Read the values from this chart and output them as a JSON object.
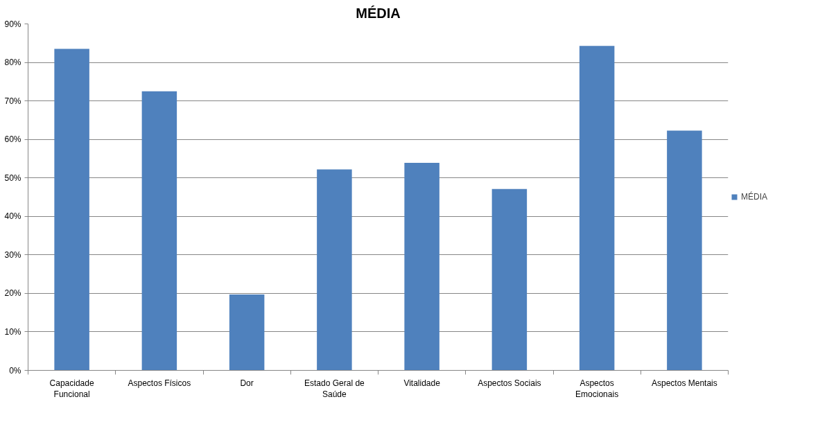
{
  "chart_data": {
    "type": "bar",
    "title": "MÉDIA",
    "categories": [
      "Capacidade Funcional",
      "Aspectos Físicos",
      "Dor",
      "Estado Geral de Saúde",
      "Vitalidade",
      "Aspectos Sociais",
      "Aspectos Emocionais",
      "Aspectos Mentais"
    ],
    "series": [
      {
        "name": "MÉDIA",
        "color": "#4f81bd",
        "values": [
          0.835,
          0.725,
          0.197,
          0.522,
          0.539,
          0.471,
          0.843,
          0.623
        ]
      }
    ],
    "ylim": [
      0,
      0.9
    ],
    "yticks": [
      {
        "value": 0,
        "label": "0%"
      },
      {
        "value": 0.1,
        "label": "10%"
      },
      {
        "value": 0.2,
        "label": "20%"
      },
      {
        "value": 0.3,
        "label": "30%"
      },
      {
        "value": 0.4,
        "label": "40%"
      },
      {
        "value": 0.5,
        "label": "50%"
      },
      {
        "value": 0.6,
        "label": "60%"
      },
      {
        "value": 0.7,
        "label": "70%"
      },
      {
        "value": 0.8,
        "label": "80%"
      },
      {
        "value": 0.9,
        "label": "90%"
      }
    ],
    "grid": "y",
    "legend": "right"
  }
}
